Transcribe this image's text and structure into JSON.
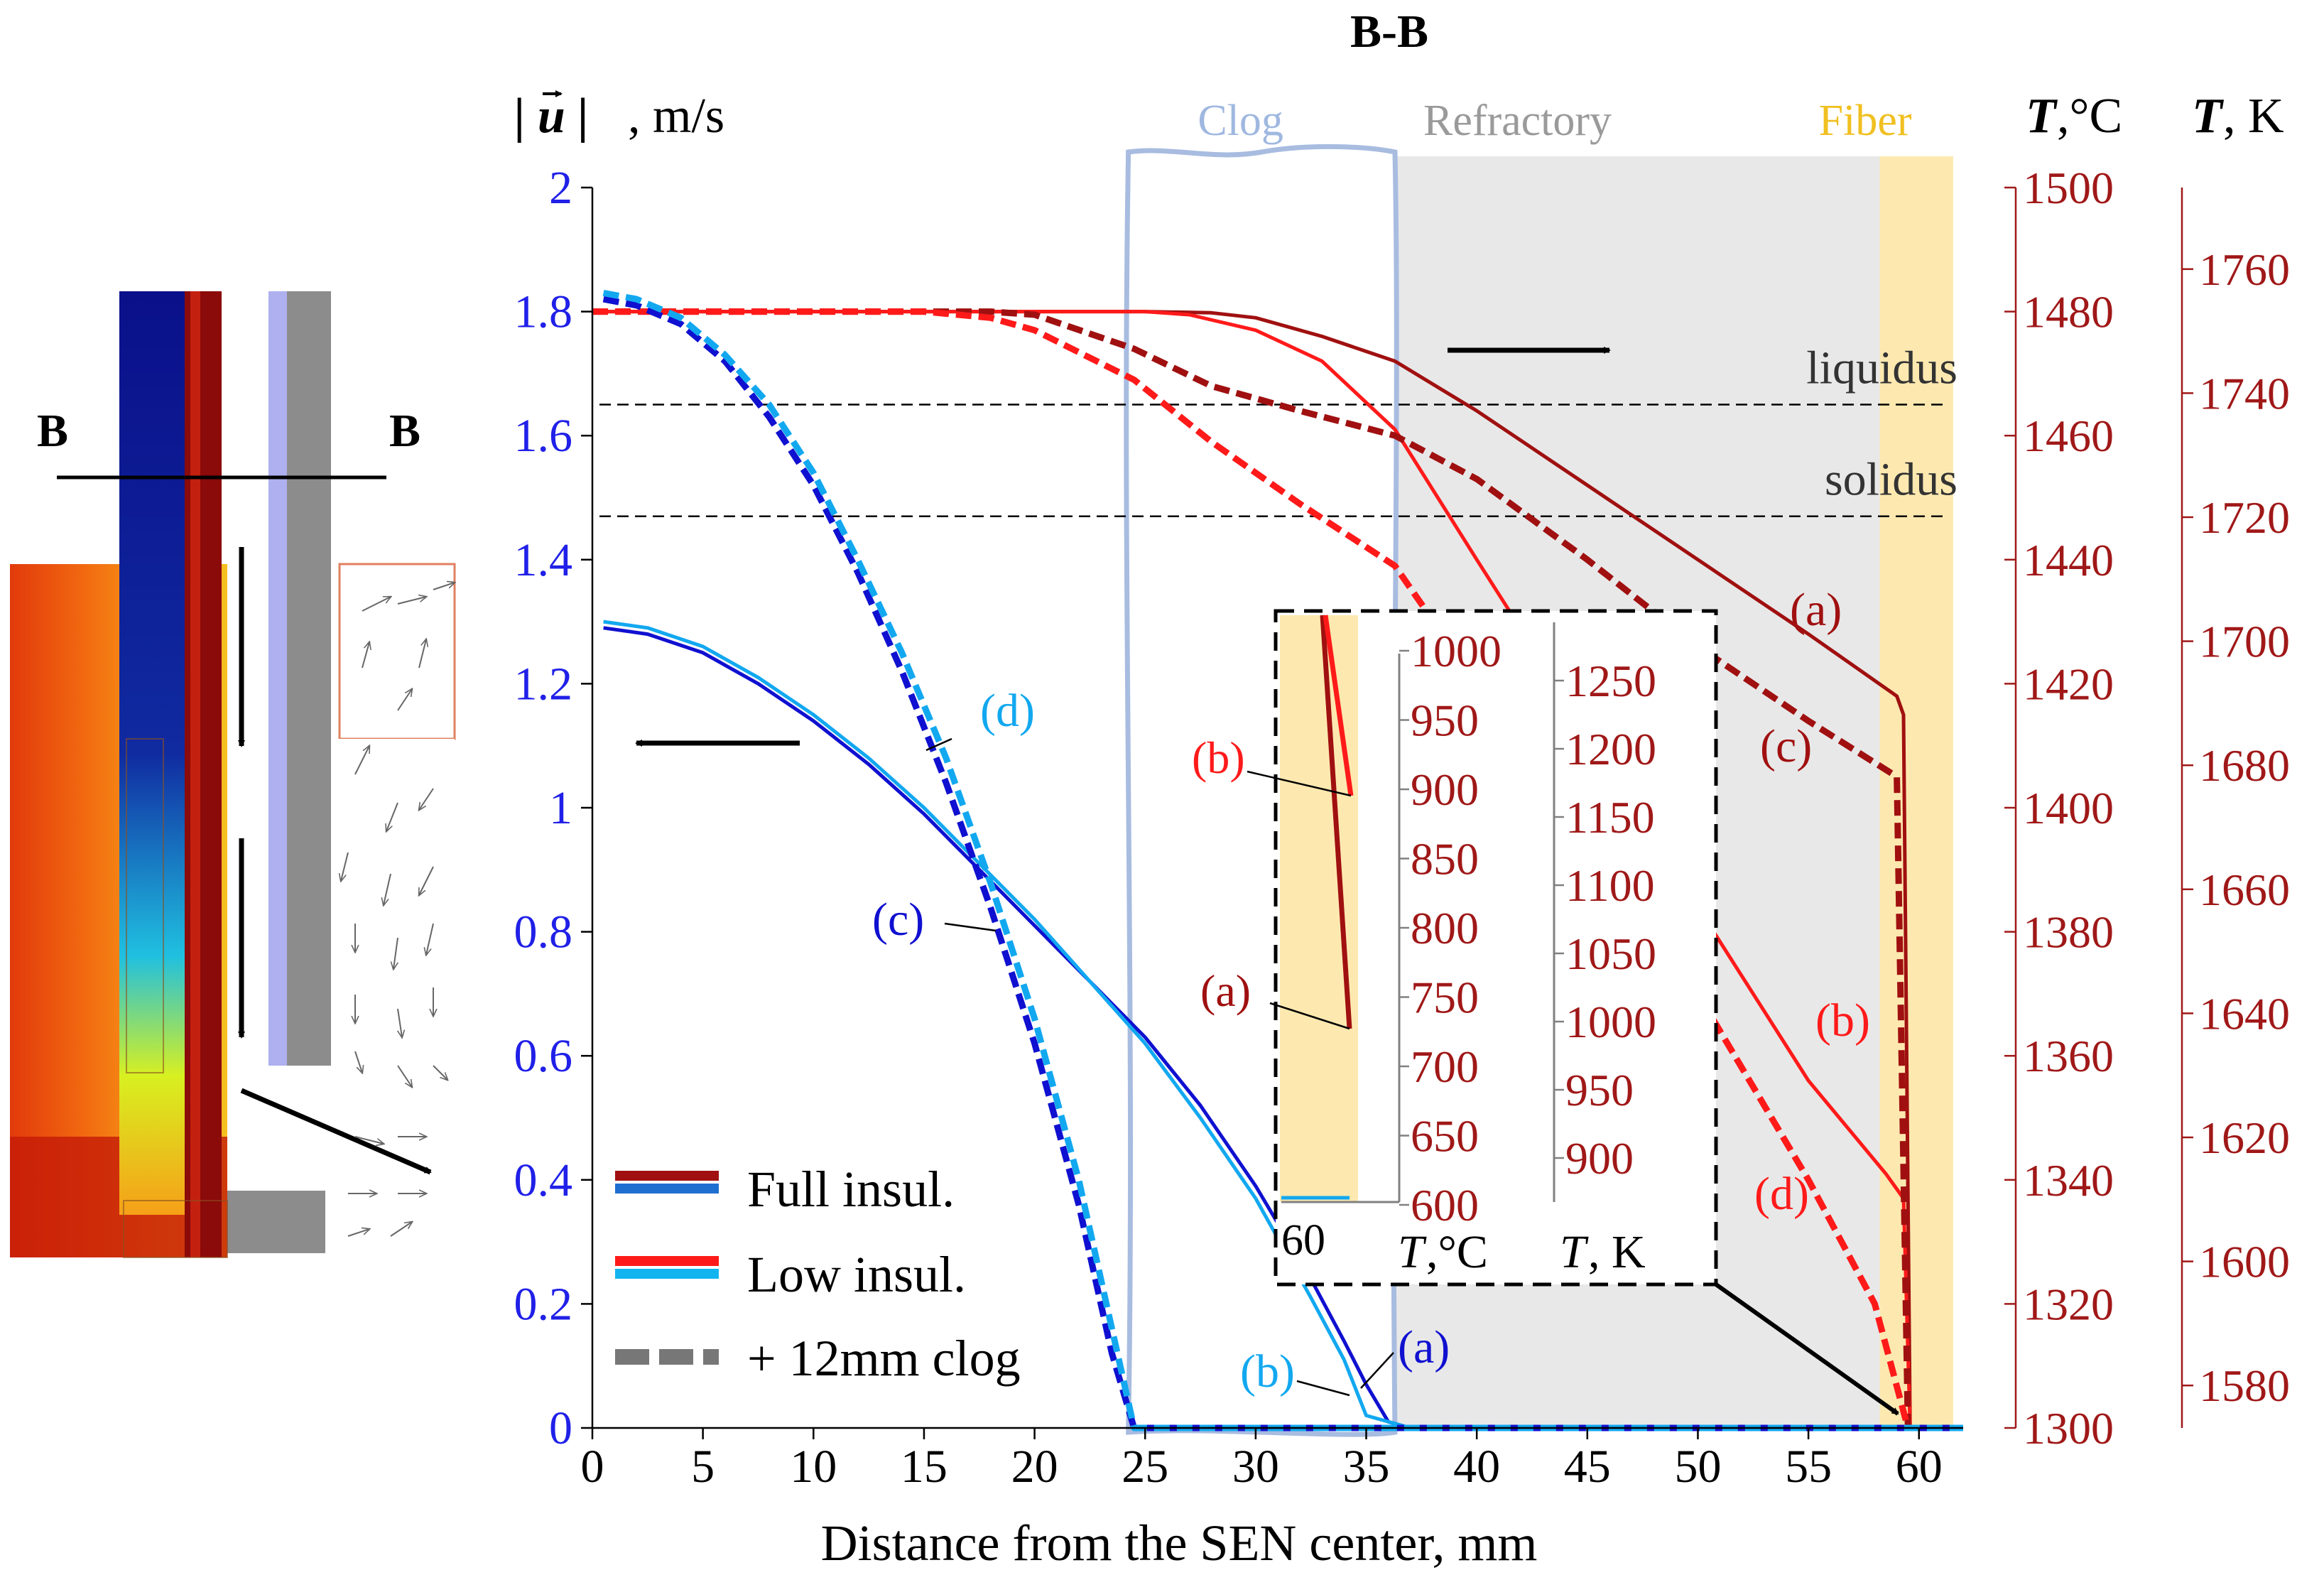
{
  "colors": {
    "velocity_axis": "#2020e8",
    "temperature_axis": "#a01818",
    "full_red": "#a01010",
    "low_red": "#ff1a1a",
    "full_blue": "#1010d0",
    "low_blue": "#12a8f0",
    "clog_outline": "#a8bce0",
    "clog_label": "#9fb8e0",
    "refractory_fill": "#e8e8e8",
    "refractory_label": "#9a9a9a",
    "fiber_fill": "#fde9b0",
    "fiber_label": "#f0c020",
    "legend_gray": "#777777"
  },
  "chart_data": {
    "type": "line",
    "title": "B-B",
    "xlabel": "Distance from the SEN center, mm",
    "xlim": [
      0,
      62
    ],
    "xticks": [
      0,
      5,
      10,
      15,
      20,
      25,
      30,
      35,
      40,
      45,
      50,
      55,
      60
    ],
    "y_left": {
      "label": "|u| , m/s",
      "label_base": "| u |",
      "label_unit": ", m/s",
      "lim": [
        0,
        2
      ],
      "ticks": [
        "0",
        "0.2",
        "0.4",
        "0.6",
        "0.8",
        "1",
        "1.2",
        "1.4",
        "1.6",
        "1.8",
        "2"
      ]
    },
    "y_right_c": {
      "label": "T,°C",
      "label_sym": "T",
      "label_unit": ",°C",
      "lim": [
        1300,
        1500
      ],
      "ticks": [
        "1300",
        "1320",
        "1340",
        "1360",
        "1380",
        "1400",
        "1420",
        "1440",
        "1460",
        "1480",
        "1500"
      ]
    },
    "y_right_k": {
      "label": "T, K",
      "label_sym": "T",
      "label_unit": ", K",
      "lim": [
        1573.15,
        1773.15
      ],
      "ticks": [
        "1580",
        "1600",
        "1620",
        "1640",
        "1660",
        "1680",
        "1700",
        "1720",
        "1740",
        "1760"
      ]
    },
    "regions": [
      {
        "name": "Clog",
        "x_range": [
          24.5,
          36.3
        ]
      },
      {
        "name": "Refractory",
        "x_range": [
          36.3,
          59
        ]
      },
      {
        "name": "Fiber",
        "x_range": [
          59,
          62
        ]
      }
    ],
    "reference_lines": [
      {
        "label": "liquidus",
        "T_C": 1465
      },
      {
        "label": "solidus",
        "T_C": 1447
      }
    ],
    "series": [
      {
        "name": "(a) Full insul. temperature",
        "axis": "T_C",
        "color": "full_red",
        "dashed": false,
        "x": [
          0,
          5,
          10,
          15,
          20,
          25,
          28,
          30,
          33,
          36.3,
          40,
          45,
          50,
          55,
          59,
          59.3,
          59.6
        ],
        "y": [
          1480,
          1480,
          1480,
          1480,
          1480,
          1480,
          1479.8,
          1479,
          1476,
          1472,
          1464,
          1452,
          1440,
          1428,
          1418,
          1415,
          1300
        ]
      },
      {
        "name": "(b) Low insul. temperature",
        "axis": "T_C",
        "color": "low_red",
        "dashed": false,
        "x": [
          0,
          5,
          10,
          15,
          20,
          25,
          27,
          30,
          33,
          36.3,
          40,
          45,
          50,
          55,
          58.5,
          59.3,
          59.6
        ],
        "y": [
          1480,
          1480,
          1480,
          1480,
          1480,
          1480,
          1479.5,
          1477,
          1472,
          1461,
          1440,
          1412,
          1384,
          1356,
          1341,
          1337,
          1300
        ]
      },
      {
        "name": "(c) Full insul. + 12mm clog temperature",
        "axis": "T_C",
        "color": "full_red",
        "dashed": true,
        "x": [
          0,
          5,
          10,
          15,
          18,
          20,
          24.5,
          28,
          32,
          36.3,
          40,
          45,
          50,
          55,
          59,
          59.5
        ],
        "y": [
          1480,
          1480,
          1480,
          1480,
          1480,
          1479.5,
          1474,
          1468,
          1464,
          1460,
          1453,
          1440,
          1426,
          1414,
          1405,
          1300
        ]
      },
      {
        "name": "(d) Low insul. + 12mm clog temperature",
        "axis": "T_C",
        "color": "low_red",
        "dashed": true,
        "x": [
          0,
          5,
          10,
          15,
          18,
          20,
          24.5,
          28,
          32,
          36.3,
          40,
          45,
          50,
          55,
          58,
          59.5
        ],
        "y": [
          1480,
          1480,
          1480,
          1480,
          1479,
          1477,
          1469,
          1459,
          1449,
          1439,
          1420,
          1390,
          1370,
          1340,
          1320,
          1300
        ]
      },
      {
        "name": "(a) Full insul. velocity",
        "axis": "u",
        "color": "full_blue",
        "dashed": false,
        "x": [
          0.5,
          2.5,
          5,
          7.5,
          10,
          12.5,
          15,
          17.5,
          20,
          22.5,
          25,
          27.5,
          30,
          32.5,
          34,
          35,
          36,
          37,
          40,
          50,
          60,
          62
        ],
        "y": [
          1.29,
          1.28,
          1.25,
          1.2,
          1.14,
          1.07,
          0.99,
          0.9,
          0.81,
          0.72,
          0.63,
          0.52,
          0.39,
          0.24,
          0.14,
          0.07,
          0.01,
          0,
          0,
          0,
          0,
          0
        ]
      },
      {
        "name": "(b) Low insul. velocity",
        "axis": "u",
        "color": "low_blue",
        "dashed": false,
        "x": [
          0.5,
          2.5,
          5,
          7.5,
          10,
          12.5,
          15,
          17.5,
          20,
          22.5,
          25,
          27.5,
          30,
          32.5,
          34,
          35,
          37,
          40,
          50,
          60,
          62
        ],
        "y": [
          1.3,
          1.29,
          1.26,
          1.21,
          1.15,
          1.08,
          1.0,
          0.91,
          0.82,
          0.72,
          0.62,
          0.5,
          0.37,
          0.21,
          0.11,
          0.02,
          0,
          0,
          0,
          0,
          0
        ]
      },
      {
        "name": "(c) Full insul. + 12mm clog velocity",
        "axis": "u",
        "color": "full_blue",
        "dashed": true,
        "x": [
          0.5,
          2,
          4,
          6,
          8,
          10,
          12,
          14,
          16,
          18,
          20,
          22,
          23.5,
          24.5,
          30,
          40,
          50,
          60,
          62
        ],
        "y": [
          1.82,
          1.81,
          1.78,
          1.72,
          1.63,
          1.52,
          1.38,
          1.22,
          1.04,
          0.84,
          0.62,
          0.36,
          0.12,
          0,
          0,
          0,
          0,
          0,
          0
        ]
      },
      {
        "name": "(d) Low insul. + 12mm clog velocity",
        "axis": "u",
        "color": "low_blue",
        "dashed": true,
        "x": [
          0.5,
          2,
          4,
          6,
          8,
          10,
          12,
          14,
          16,
          18,
          20,
          22,
          23.5,
          24.5,
          30,
          40,
          50,
          60,
          62
        ],
        "y": [
          1.83,
          1.82,
          1.79,
          1.73,
          1.65,
          1.54,
          1.4,
          1.25,
          1.08,
          0.88,
          0.66,
          0.4,
          0.16,
          0,
          0,
          0,
          0,
          0,
          0
        ]
      }
    ],
    "curve_labels": [
      {
        "text": "(a)",
        "color": "full_red"
      },
      {
        "text": "(c)",
        "color": "full_red"
      },
      {
        "text": "(b)",
        "color": "low_red"
      },
      {
        "text": "(d)",
        "color": "low_red"
      },
      {
        "text": "(d)",
        "color": "low_blue"
      },
      {
        "text": "(c)",
        "color": "full_blue"
      },
      {
        "text": "(b)",
        "color": "low_blue"
      },
      {
        "text": "(a)",
        "color": "full_blue"
      }
    ],
    "legend": [
      {
        "label": "Full insul.",
        "colors": [
          "full_red",
          "full_blue"
        ],
        "dashed": false
      },
      {
        "label": "Low insul.",
        "colors": [
          "low_red",
          "low_blue"
        ],
        "dashed": false
      },
      {
        "label": "+ 12mm clog",
        "colors": [
          "legend_gray"
        ],
        "dashed": true
      }
    ],
    "inset": {
      "description": "zoom near fiber wall",
      "x_tick": "60",
      "c_ticks": [
        "1000",
        "950",
        "900",
        "850",
        "800",
        "750",
        "700",
        "650",
        "600"
      ],
      "k_ticks": [
        "1250",
        "1200",
        "1150",
        "1100",
        "1050",
        "1000",
        "950",
        "900"
      ],
      "label_c": "T,°C",
      "label_k": "T, K",
      "label_c_sym": "T",
      "label_c_unit": ",°C",
      "label_k_sym": "T",
      "label_k_unit": ", K",
      "curve_labels": [
        "(b)",
        "(a)"
      ]
    }
  },
  "cross_section": {
    "label_left": "B",
    "label_right": "B"
  }
}
